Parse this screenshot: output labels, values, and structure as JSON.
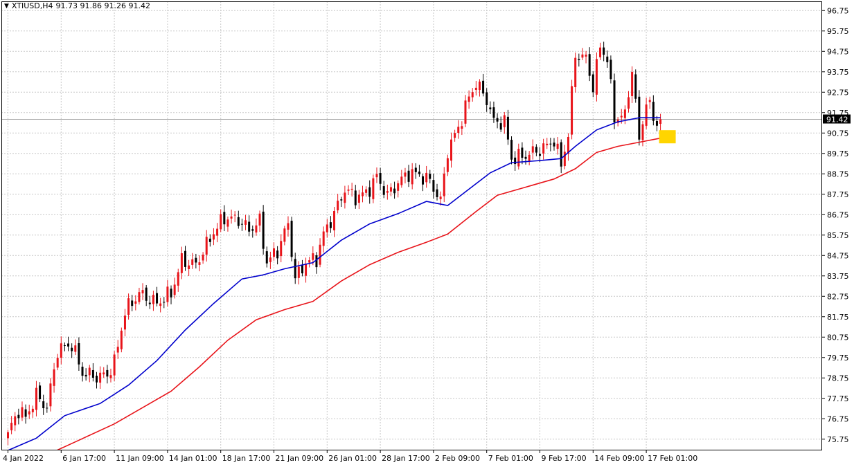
{
  "header": {
    "arrow_icon": "triangle-down-icon",
    "symbol": "XTIUSD,H4",
    "ohlc": "91.73 91.86 91.26 91.42"
  },
  "colors": {
    "bull": "#e8141a",
    "bear": "#000000",
    "ma_fast": "#0000cc",
    "ma_slow": "#e8141a",
    "grid": "#c8c8c8",
    "frame": "#000000",
    "price_tag_bg": "#000000",
    "price_tag_text": "#ffffff",
    "marker": "#ffd500"
  },
  "chart_data": {
    "type": "candlestick",
    "title": "XTIUSD,H4",
    "ylim": [
      75.2,
      97.2
    ],
    "y_ticks": [
      75.75,
      76.75,
      77.75,
      78.75,
      79.75,
      80.75,
      81.75,
      82.75,
      83.75,
      84.75,
      85.75,
      86.75,
      87.75,
      88.75,
      89.75,
      90.75,
      91.75,
      92.75,
      93.75,
      94.75,
      95.75,
      96.75
    ],
    "y_tick_labels": [
      "75.75",
      "76.75",
      "77.75",
      "78.75",
      "79.75",
      "80.75",
      "81.75",
      "82.75",
      "83.75",
      "84.75",
      "85.75",
      "86.75",
      "87.75",
      "88.75",
      "89.75",
      "90.75",
      "91.75",
      "92.75",
      "93.75",
      "94.75",
      "95.75",
      "96.75"
    ],
    "x_tick_labels": [
      {
        "bar": 0,
        "label": "4 Jan 2022"
      },
      {
        "bar": 15,
        "label": "6 Jan 17:00"
      },
      {
        "bar": 30,
        "label": "11 Jan 09:00"
      },
      {
        "bar": 45,
        "label": "14 Jan 01:00"
      },
      {
        "bar": 60,
        "label": "18 Jan 17:00"
      },
      {
        "bar": 75,
        "label": "21 Jan 09:00"
      },
      {
        "bar": 90,
        "label": "26 Jan 01:00"
      },
      {
        "bar": 105,
        "label": "28 Jan 17:00"
      },
      {
        "bar": 120,
        "label": "2 Feb 09:00"
      },
      {
        "bar": 135,
        "label": "7 Feb 01:00"
      },
      {
        "bar": 150,
        "label": "9 Feb 17:00"
      },
      {
        "bar": 165,
        "label": "14 Feb 09:00"
      },
      {
        "bar": 180,
        "label": "17 Feb 01:00"
      }
    ],
    "current_price": 91.42,
    "current_price_label": "91.42",
    "anchors": [
      [
        0,
        76.0
      ],
      [
        3,
        77.2
      ],
      [
        5,
        76.8
      ],
      [
        8,
        77.9
      ],
      [
        11,
        77.3
      ],
      [
        14,
        80.1
      ],
      [
        18,
        80.4
      ],
      [
        21,
        79.0
      ],
      [
        25,
        78.8
      ],
      [
        28,
        78.9
      ],
      [
        30,
        79.5
      ],
      [
        33,
        82.0
      ],
      [
        37,
        82.9
      ],
      [
        42,
        82.4
      ],
      [
        46,
        82.9
      ],
      [
        49,
        84.5
      ],
      [
        53,
        84.3
      ],
      [
        58,
        85.9
      ],
      [
        61,
        86.6
      ],
      [
        65,
        86.5
      ],
      [
        68,
        86.0
      ],
      [
        71,
        86.4
      ],
      [
        73,
        84.4
      ],
      [
        76,
        85.0
      ],
      [
        79,
        86.3
      ],
      [
        81,
        83.6
      ],
      [
        84,
        84.4
      ],
      [
        87,
        84.6
      ],
      [
        89,
        85.8
      ],
      [
        92,
        86.8
      ],
      [
        95,
        88.0
      ],
      [
        98,
        87.6
      ],
      [
        101,
        87.8
      ],
      [
        104,
        88.6
      ],
      [
        107,
        87.7
      ],
      [
        110,
        88.3
      ],
      [
        113,
        88.8
      ],
      [
        116,
        88.7
      ],
      [
        119,
        88.4
      ],
      [
        122,
        87.4
      ],
      [
        124,
        89.9
      ],
      [
        127,
        91.0
      ],
      [
        130,
        92.5
      ],
      [
        132,
        93.2
      ],
      [
        135,
        92.4
      ],
      [
        137,
        91.3
      ],
      [
        140,
        91.3
      ],
      [
        142,
        89.5
      ],
      [
        145,
        89.6
      ],
      [
        148,
        89.8
      ],
      [
        151,
        90.0
      ],
      [
        154,
        90.4
      ],
      [
        156,
        89.2
      ],
      [
        158,
        90.7
      ],
      [
        160,
        94.6
      ],
      [
        163,
        94.4
      ],
      [
        165,
        93.0
      ],
      [
        167,
        95.0
      ],
      [
        169,
        94.4
      ],
      [
        171,
        91.5
      ],
      [
        174,
        91.6
      ],
      [
        176,
        93.9
      ],
      [
        178,
        90.4
      ],
      [
        180,
        92.3
      ],
      [
        183,
        91.2
      ],
      [
        184,
        91.42
      ]
    ],
    "candle_count": 185,
    "series": [
      {
        "name": "",
        "kind": "moving-average",
        "color": "#0000cc",
        "points": [
          [
            0,
            75.2
          ],
          [
            8,
            75.8
          ],
          [
            16,
            76.9
          ],
          [
            26,
            77.5
          ],
          [
            34,
            78.4
          ],
          [
            42,
            79.6
          ],
          [
            50,
            81.1
          ],
          [
            58,
            82.4
          ],
          [
            66,
            83.6
          ],
          [
            72,
            83.8
          ],
          [
            78,
            84.1
          ],
          [
            86,
            84.4
          ],
          [
            94,
            85.5
          ],
          [
            102,
            86.3
          ],
          [
            110,
            86.8
          ],
          [
            118,
            87.4
          ],
          [
            124,
            87.2
          ],
          [
            130,
            88.0
          ],
          [
            136,
            88.8
          ],
          [
            142,
            89.3
          ],
          [
            150,
            89.4
          ],
          [
            156,
            89.5
          ],
          [
            160,
            90.1
          ],
          [
            166,
            90.9
          ],
          [
            172,
            91.3
          ],
          [
            178,
            91.5
          ],
          [
            184,
            91.5
          ]
        ]
      },
      {
        "name": "",
        "kind": "moving-average",
        "color": "#e8141a",
        "points": [
          [
            0,
            74.2
          ],
          [
            10,
            74.9
          ],
          [
            20,
            75.7
          ],
          [
            30,
            76.5
          ],
          [
            38,
            77.3
          ],
          [
            46,
            78.1
          ],
          [
            54,
            79.3
          ],
          [
            62,
            80.6
          ],
          [
            70,
            81.6
          ],
          [
            78,
            82.1
          ],
          [
            86,
            82.5
          ],
          [
            94,
            83.5
          ],
          [
            102,
            84.3
          ],
          [
            110,
            84.9
          ],
          [
            118,
            85.4
          ],
          [
            124,
            85.8
          ],
          [
            132,
            86.9
          ],
          [
            138,
            87.7
          ],
          [
            146,
            88.1
          ],
          [
            154,
            88.5
          ],
          [
            160,
            89.0
          ],
          [
            166,
            89.8
          ],
          [
            172,
            90.1
          ],
          [
            178,
            90.3
          ],
          [
            184,
            90.5
          ]
        ]
      }
    ],
    "markers": [
      {
        "label": "",
        "bar": 184,
        "price": 90.55,
        "shape": "yellow-square"
      }
    ],
    "grid": true,
    "legend": "none"
  }
}
